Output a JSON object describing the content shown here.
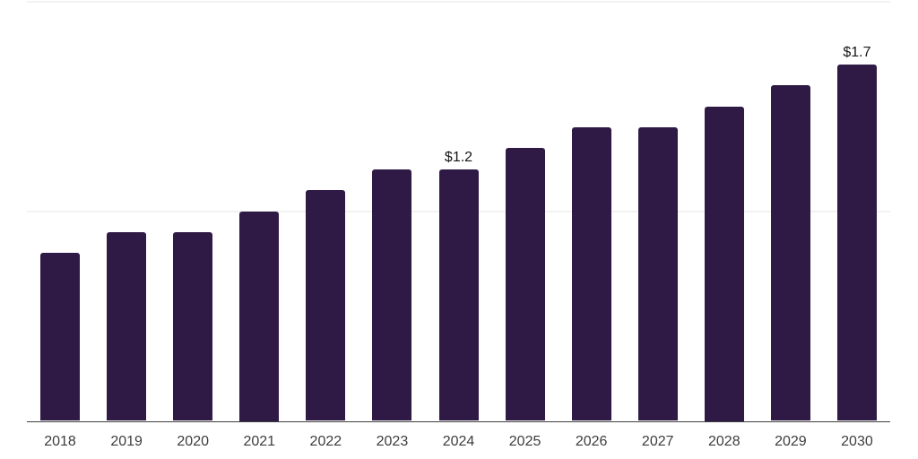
{
  "chart_data": {
    "type": "bar",
    "categories": [
      "2018",
      "2019",
      "2020",
      "2021",
      "2022",
      "2023",
      "2024",
      "2025",
      "2026",
      "2027",
      "2028",
      "2029",
      "2030"
    ],
    "values": [
      0.8,
      0.9,
      0.9,
      1.0,
      1.1,
      1.2,
      1.2,
      1.3,
      1.4,
      1.4,
      1.5,
      1.6,
      1.7
    ],
    "data_labels": [
      null,
      null,
      null,
      null,
      null,
      null,
      "$1.2",
      null,
      null,
      null,
      null,
      null,
      "$1.7"
    ],
    "title": "",
    "xlabel": "",
    "ylabel": "",
    "ylim": [
      0,
      2.0
    ],
    "gridline_values": [
      1.0,
      2.0
    ],
    "grid": "horizontal",
    "legend": "none",
    "colors": {
      "bar_fill": "#2F1A45",
      "gridline": "#F2F2F4",
      "axis_line": "#3E3E3E",
      "tick_label": "#3D3D3D",
      "value_label": "#161616",
      "background": "#FFFFFF"
    }
  }
}
